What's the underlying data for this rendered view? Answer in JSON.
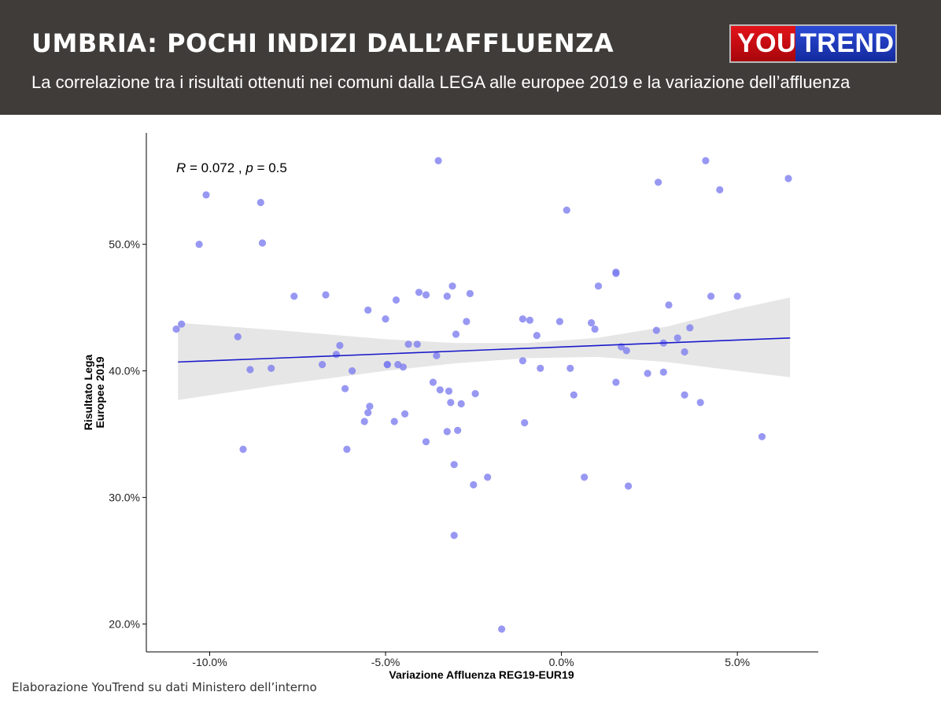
{
  "header": {
    "title": "UMBRIA: POCHI INDIZI DALL’AFFLUENZA",
    "subtitle": "La correlazione tra i risultati ottenuti nei comuni dalla LEGA alle europee 2019 e la variazione dell’affluenza",
    "background": "#403c39",
    "logo": {
      "part1": "YOU",
      "part2": "TREND",
      "color1": "#d4101a",
      "color2": "#1f3cc8"
    }
  },
  "source": "Elaborazione YouTrend su dati Ministero dell’interno",
  "chart_data": {
    "type": "scatter",
    "xlabel": "Variazione Affluenza REG19-EUR19",
    "ylabel_lines": [
      "Risultato Lega",
      "Europee 2019"
    ],
    "annotation": {
      "R_label": "R",
      "R_value": " = 0.072 , ",
      "p_label": "p",
      "p_value": " = 0.5"
    },
    "xlim": [
      -11.8,
      7.3
    ],
    "ylim": [
      17.8,
      58.8
    ],
    "x_ticks": [
      {
        "value": -10,
        "label": "-10.0%"
      },
      {
        "value": -5,
        "label": "-5.0%"
      },
      {
        "value": 0,
        "label": "0.0%"
      },
      {
        "value": 5,
        "label": "5.0%"
      }
    ],
    "y_ticks": [
      {
        "value": 20,
        "label": "20.0%"
      },
      {
        "value": 30,
        "label": "30.0%"
      },
      {
        "value": 40,
        "label": "40.0%"
      },
      {
        "value": 50,
        "label": "50.0%"
      }
    ],
    "grid": false,
    "point_color": "#7b7bf0",
    "line_color": "#1a1acc",
    "band_color": "#e6e6e6",
    "regression": {
      "x": [
        -10.9,
        6.5
      ],
      "y": [
        40.7,
        42.6
      ]
    },
    "confidence_band": {
      "x": [
        -10.9,
        -8.0,
        -5.0,
        -3.0,
        -1.0,
        1.0,
        3.0,
        5.0,
        6.5
      ],
      "lower": [
        37.7,
        38.9,
        40.0,
        40.6,
        41.0,
        41.1,
        40.7,
        40.0,
        39.5
      ],
      "upper": [
        43.8,
        43.2,
        42.5,
        42.2,
        42.2,
        42.6,
        43.5,
        44.9,
        45.8
      ]
    },
    "points": [
      {
        "x": -10.95,
        "y": 43.3
      },
      {
        "x": -10.8,
        "y": 43.7
      },
      {
        "x": -10.3,
        "y": 50.0
      },
      {
        "x": -10.1,
        "y": 53.9
      },
      {
        "x": -9.2,
        "y": 42.7
      },
      {
        "x": -9.05,
        "y": 33.8
      },
      {
        "x": -8.85,
        "y": 40.1
      },
      {
        "x": -8.55,
        "y": 53.3
      },
      {
        "x": -8.5,
        "y": 50.1
      },
      {
        "x": -8.25,
        "y": 40.2
      },
      {
        "x": -7.6,
        "y": 45.9
      },
      {
        "x": -6.8,
        "y": 40.5
      },
      {
        "x": -6.7,
        "y": 46.0
      },
      {
        "x": -6.4,
        "y": 41.3
      },
      {
        "x": -6.3,
        "y": 42.0
      },
      {
        "x": -6.15,
        "y": 38.6
      },
      {
        "x": -6.1,
        "y": 33.8
      },
      {
        "x": -5.95,
        "y": 40.0
      },
      {
        "x": -5.6,
        "y": 36.0
      },
      {
        "x": -5.5,
        "y": 44.8
      },
      {
        "x": -5.5,
        "y": 36.7
      },
      {
        "x": -5.45,
        "y": 37.2
      },
      {
        "x": -5.0,
        "y": 44.1
      },
      {
        "x": -4.95,
        "y": 40.5
      },
      {
        "x": -4.95,
        "y": 40.5
      },
      {
        "x": -4.75,
        "y": 36.0
      },
      {
        "x": -4.7,
        "y": 45.6
      },
      {
        "x": -4.65,
        "y": 40.5
      },
      {
        "x": -4.5,
        "y": 40.3
      },
      {
        "x": -4.45,
        "y": 36.6
      },
      {
        "x": -4.35,
        "y": 42.1
      },
      {
        "x": -4.1,
        "y": 42.1
      },
      {
        "x": -4.05,
        "y": 46.2
      },
      {
        "x": -3.85,
        "y": 34.4
      },
      {
        "x": -3.85,
        "y": 46.0
      },
      {
        "x": -3.65,
        "y": 39.1
      },
      {
        "x": -3.55,
        "y": 41.2
      },
      {
        "x": -3.5,
        "y": 56.6
      },
      {
        "x": -3.45,
        "y": 38.5
      },
      {
        "x": -3.25,
        "y": 35.2
      },
      {
        "x": -3.25,
        "y": 45.9
      },
      {
        "x": -3.2,
        "y": 38.4
      },
      {
        "x": -3.15,
        "y": 37.5
      },
      {
        "x": -3.1,
        "y": 46.7
      },
      {
        "x": -3.05,
        "y": 32.6
      },
      {
        "x": -3.05,
        "y": 27.0
      },
      {
        "x": -3.0,
        "y": 42.9
      },
      {
        "x": -2.95,
        "y": 35.3
      },
      {
        "x": -2.85,
        "y": 37.4
      },
      {
        "x": -2.7,
        "y": 43.9
      },
      {
        "x": -2.6,
        "y": 46.1
      },
      {
        "x": -2.5,
        "y": 31.0
      },
      {
        "x": -2.45,
        "y": 38.2
      },
      {
        "x": -2.1,
        "y": 31.6
      },
      {
        "x": -1.7,
        "y": 19.6
      },
      {
        "x": -1.1,
        "y": 44.1
      },
      {
        "x": -1.1,
        "y": 40.8
      },
      {
        "x": -1.05,
        "y": 35.9
      },
      {
        "x": -0.9,
        "y": 44.0
      },
      {
        "x": -0.7,
        "y": 42.8
      },
      {
        "x": -0.6,
        "y": 40.2
      },
      {
        "x": -0.05,
        "y": 43.9
      },
      {
        "x": 0.15,
        "y": 52.7
      },
      {
        "x": 0.25,
        "y": 40.2
      },
      {
        "x": 0.35,
        "y": 38.1
      },
      {
        "x": 0.65,
        "y": 31.6
      },
      {
        "x": 0.85,
        "y": 43.8
      },
      {
        "x": 0.95,
        "y": 43.3
      },
      {
        "x": 1.05,
        "y": 46.7
      },
      {
        "x": 1.55,
        "y": 47.8
      },
      {
        "x": 1.55,
        "y": 47.7
      },
      {
        "x": 1.55,
        "y": 39.1
      },
      {
        "x": 1.7,
        "y": 41.9
      },
      {
        "x": 1.85,
        "y": 41.6
      },
      {
        "x": 1.9,
        "y": 30.9
      },
      {
        "x": 2.45,
        "y": 39.8
      },
      {
        "x": 2.7,
        "y": 43.2
      },
      {
        "x": 2.75,
        "y": 54.9
      },
      {
        "x": 2.9,
        "y": 42.2
      },
      {
        "x": 2.9,
        "y": 39.9
      },
      {
        "x": 3.05,
        "y": 45.2
      },
      {
        "x": 3.3,
        "y": 42.6
      },
      {
        "x": 3.5,
        "y": 41.5
      },
      {
        "x": 3.5,
        "y": 38.1
      },
      {
        "x": 3.65,
        "y": 43.4
      },
      {
        "x": 3.95,
        "y": 37.5
      },
      {
        "x": 4.1,
        "y": 56.6
      },
      {
        "x": 4.25,
        "y": 45.9
      },
      {
        "x": 4.5,
        "y": 54.3
      },
      {
        "x": 5.0,
        "y": 45.9
      },
      {
        "x": 5.7,
        "y": 34.8
      },
      {
        "x": 6.45,
        "y": 55.2
      }
    ]
  }
}
